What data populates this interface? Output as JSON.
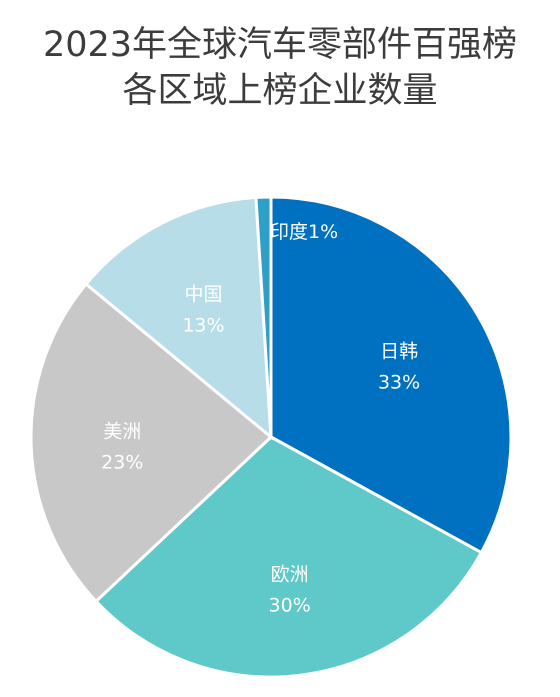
{
  "chart_data": {
    "type": "pie",
    "title": [
      "2023年全球汽车零部件百强榜",
      "各区域上榜企业数量"
    ],
    "categories": [
      "日韩",
      "欧洲",
      "美洲",
      "中国",
      "印度"
    ],
    "values": [
      33,
      30,
      23,
      13,
      1
    ],
    "value_labels": [
      "33%",
      "30%",
      "23%",
      "13%",
      "1%"
    ],
    "colors": [
      "#0070c0",
      "#5fc8c8",
      "#c8c8c8",
      "#b7dde8",
      "#2e9fc6"
    ],
    "start": "12 o'clock",
    "direction": "clockwise",
    "legend": "none"
  }
}
